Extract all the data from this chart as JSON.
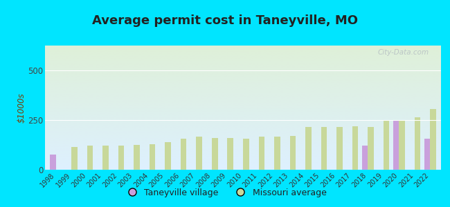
{
  "title": "Average permit cost in Taneyville, MO",
  "ylabel": "$1000s",
  "years": [
    1998,
    1999,
    2000,
    2001,
    2002,
    2003,
    2004,
    2005,
    2006,
    2007,
    2008,
    2009,
    2010,
    2011,
    2012,
    2013,
    2014,
    2015,
    2016,
    2017,
    2018,
    2019,
    2020,
    2021,
    2022
  ],
  "taneyville": [
    75,
    null,
    null,
    null,
    null,
    null,
    null,
    null,
    null,
    null,
    null,
    null,
    null,
    null,
    null,
    null,
    null,
    null,
    null,
    null,
    120,
    null,
    245,
    null,
    155
  ],
  "missouri": [
    null,
    115,
    120,
    120,
    120,
    125,
    130,
    140,
    155,
    165,
    160,
    160,
    155,
    165,
    165,
    170,
    215,
    215,
    215,
    220,
    215,
    245,
    245,
    265,
    305
  ],
  "taneyville_color": "#c9a0dc",
  "missouri_color": "#c8d89a",
  "bg_color_top": "#ddf0ff",
  "bg_color_bottom": "#dff0d8",
  "outer_bg": "#00e5ff",
  "grid_color": "#ffffff",
  "ylim": [
    0,
    625
  ],
  "yticks": [
    0,
    250,
    500
  ],
  "title_fontsize": 13,
  "legend_taneyville": "Taneyville village",
  "legend_missouri": "Missouri average",
  "watermark": "City-Data.com"
}
